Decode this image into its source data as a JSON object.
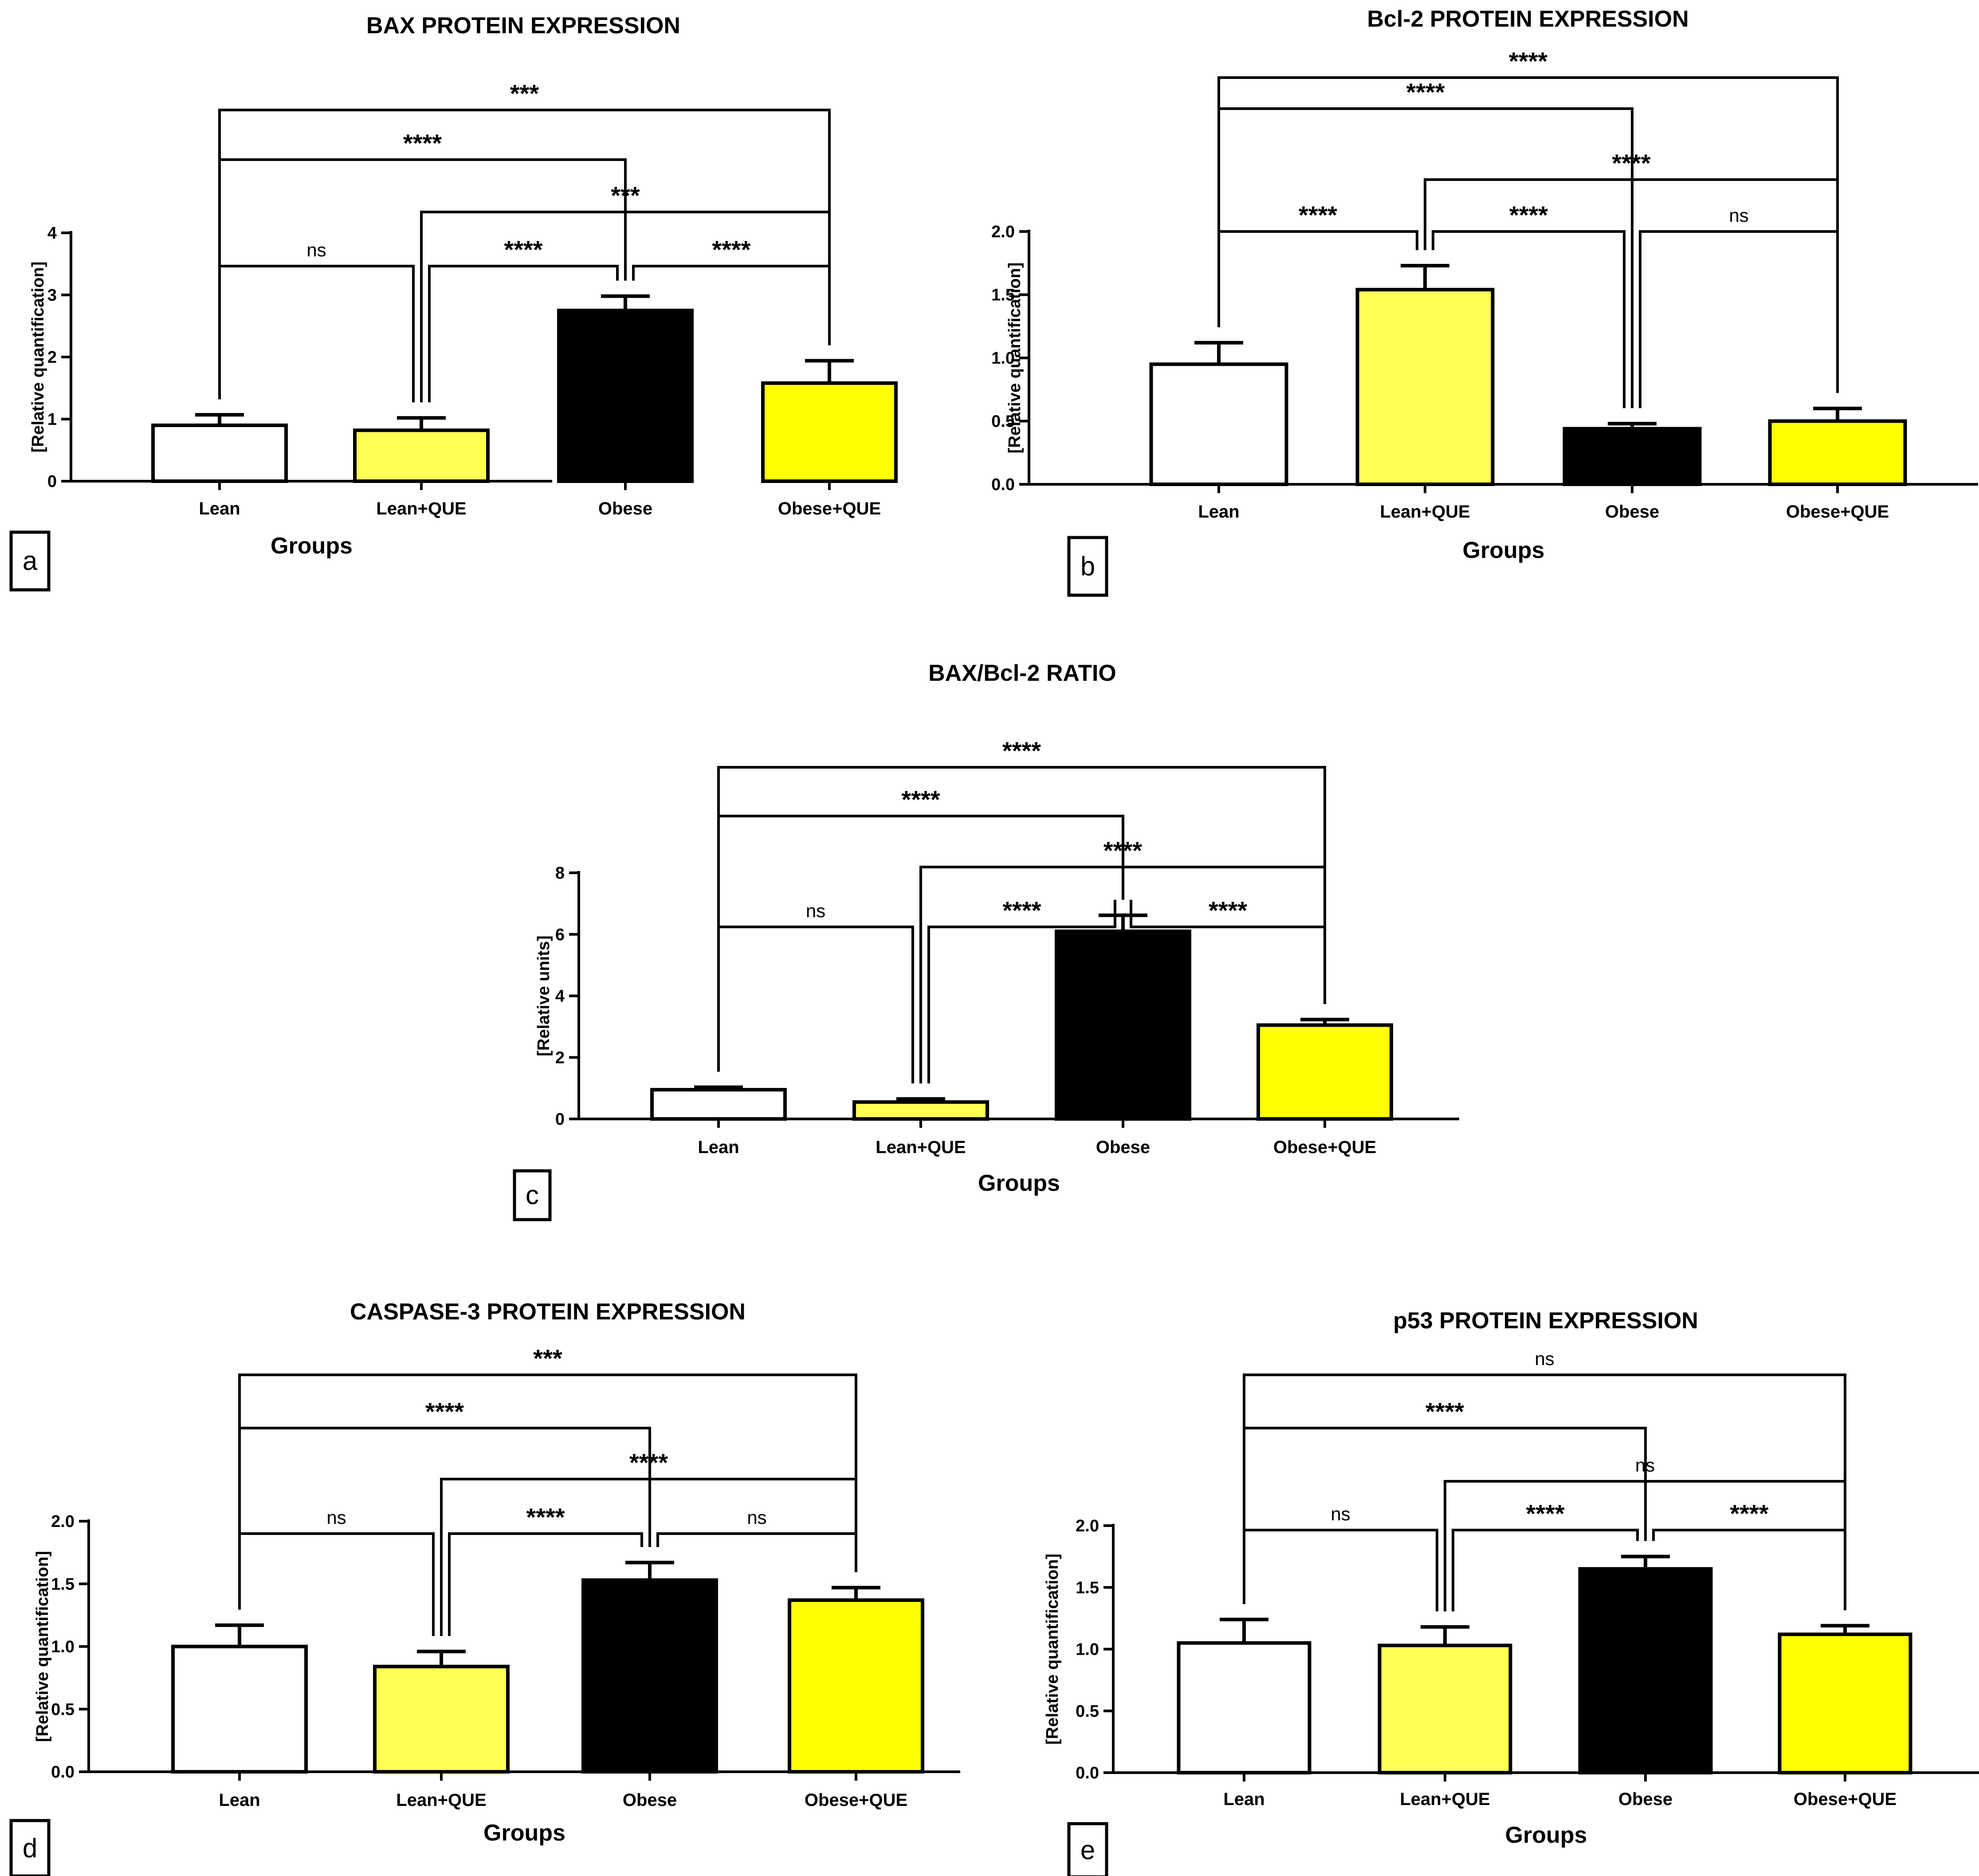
{
  "chart_data": [
    {
      "panel": "a",
      "type": "bar",
      "title": "BAX PROTEIN EXPRESSION",
      "xlabel": "Groups",
      "ylabel": "[Relative quantification]",
      "categories": [
        "Lean",
        "Lean+QUE",
        "Obese",
        "Obese+QUE"
      ],
      "values": [
        0.9,
        0.82,
        2.75,
        1.58
      ],
      "errors": [
        0.17,
        0.2,
        0.23,
        0.36
      ],
      "ylim": [
        0,
        4
      ],
      "yticks": [
        "0",
        "1",
        "2",
        "3",
        "4"
      ],
      "colors": [
        "#ffffff",
        "#ffff55",
        "#000000",
        "#ffff00"
      ],
      "comparisons": [
        {
          "from": 0,
          "to": 1,
          "label": "ns"
        },
        {
          "from": 1,
          "to": 2,
          "label": "****"
        },
        {
          "from": 2,
          "to": 3,
          "label": "****"
        },
        {
          "from": 0,
          "to": 2,
          "label": "****"
        },
        {
          "from": 1,
          "to": 3,
          "label": "***"
        },
        {
          "from": 0,
          "to": 3,
          "label": "***"
        }
      ]
    },
    {
      "panel": "b",
      "type": "bar",
      "title": "Bcl-2 PROTEIN EXPRESSION",
      "xlabel": "Groups",
      "ylabel": "[Relative quantification]",
      "categories": [
        "Lean",
        "Lean+QUE",
        "Obese",
        "Obese+QUE"
      ],
      "values": [
        0.95,
        1.54,
        0.44,
        0.5
      ],
      "errors": [
        0.17,
        0.19,
        0.04,
        0.1
      ],
      "ylim": [
        0,
        2
      ],
      "yticks": [
        "0.0",
        "0.5",
        "1.0",
        "1.5",
        "2.0"
      ],
      "colors": [
        "#ffffff",
        "#ffff55",
        "#000000",
        "#ffff00"
      ],
      "comparisons": [
        {
          "from": 0,
          "to": 1,
          "label": "****"
        },
        {
          "from": 1,
          "to": 2,
          "label": "****"
        },
        {
          "from": 2,
          "to": 3,
          "label": "ns"
        },
        {
          "from": 0,
          "to": 2,
          "label": "****"
        },
        {
          "from": 1,
          "to": 3,
          "label": "****"
        },
        {
          "from": 0,
          "to": 3,
          "label": "****"
        }
      ]
    },
    {
      "panel": "c",
      "type": "bar",
      "title": "BAX/Bcl-2 RATIO",
      "xlabel": "Groups",
      "ylabel": "[Relative units]",
      "categories": [
        "Lean",
        "Lean+QUE",
        "Obese",
        "Obese+QUE"
      ],
      "values": [
        0.95,
        0.55,
        6.1,
        3.05
      ],
      "errors": [
        0.08,
        0.1,
        0.52,
        0.18
      ],
      "ylim": [
        0,
        8
      ],
      "yticks": [
        "0",
        "2",
        "4",
        "6",
        "8"
      ],
      "colors": [
        "#ffffff",
        "#ffff55",
        "#000000",
        "#ffff00"
      ],
      "comparisons": [
        {
          "from": 0,
          "to": 1,
          "label": "ns"
        },
        {
          "from": 1,
          "to": 2,
          "label": "****"
        },
        {
          "from": 2,
          "to": 3,
          "label": "****"
        },
        {
          "from": 0,
          "to": 2,
          "label": "****"
        },
        {
          "from": 1,
          "to": 3,
          "label": "****"
        },
        {
          "from": 0,
          "to": 3,
          "label": "****"
        }
      ]
    },
    {
      "panel": "d",
      "type": "bar",
      "title": "CASPASE-3 PROTEIN EXPRESSION",
      "xlabel": "Groups",
      "ylabel": "[Relative quantification]",
      "categories": [
        "Lean",
        "Lean+QUE",
        "Obese",
        "Obese+QUE"
      ],
      "values": [
        1.0,
        0.84,
        1.53,
        1.37
      ],
      "errors": [
        0.17,
        0.12,
        0.14,
        0.1
      ],
      "ylim": [
        0,
        2
      ],
      "yticks": [
        "0.0",
        "0.5",
        "1.0",
        "1.5",
        "2.0"
      ],
      "colors": [
        "#ffffff",
        "#ffff55",
        "#000000",
        "#ffff00"
      ],
      "comparisons": [
        {
          "from": 0,
          "to": 1,
          "label": "ns"
        },
        {
          "from": 1,
          "to": 2,
          "label": "****"
        },
        {
          "from": 2,
          "to": 3,
          "label": "ns"
        },
        {
          "from": 0,
          "to": 2,
          "label": "****"
        },
        {
          "from": 1,
          "to": 3,
          "label": "****"
        },
        {
          "from": 0,
          "to": 3,
          "label": "***"
        }
      ]
    },
    {
      "panel": "e",
      "type": "bar",
      "title": "p53 PROTEIN EXPRESSION",
      "xlabel": "Groups",
      "ylabel": "[Relative quantification]",
      "categories": [
        "Lean",
        "Lean+QUE",
        "Obese",
        "Obese+QUE"
      ],
      "values": [
        1.05,
        1.03,
        1.65,
        1.12
      ],
      "errors": [
        0.19,
        0.15,
        0.1,
        0.07
      ],
      "ylim": [
        0,
        2
      ],
      "yticks": [
        "0.0",
        "0.5",
        "1.0",
        "1.5",
        "2.0"
      ],
      "colors": [
        "#ffffff",
        "#ffff55",
        "#000000",
        "#ffff00"
      ],
      "comparisons": [
        {
          "from": 0,
          "to": 1,
          "label": "ns"
        },
        {
          "from": 1,
          "to": 2,
          "label": "****"
        },
        {
          "from": 2,
          "to": 3,
          "label": "****"
        },
        {
          "from": 0,
          "to": 2,
          "label": "****"
        },
        {
          "from": 1,
          "to": 3,
          "label": "ns"
        },
        {
          "from": 0,
          "to": 3,
          "label": "ns"
        }
      ]
    }
  ]
}
